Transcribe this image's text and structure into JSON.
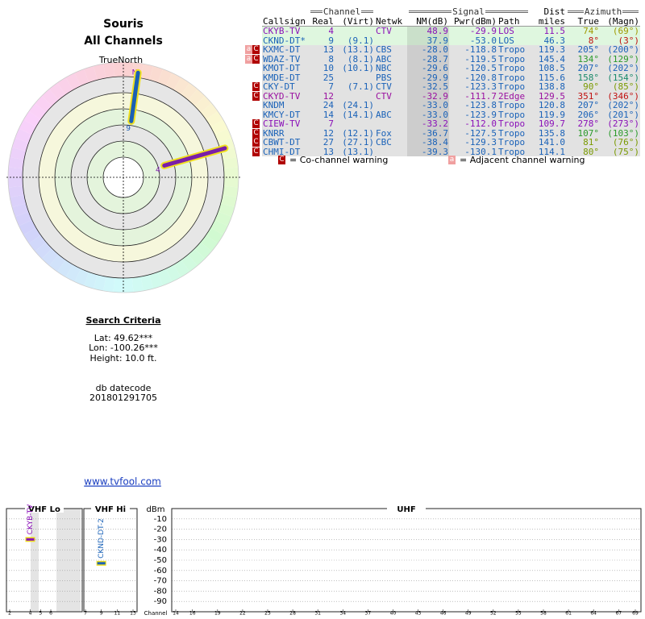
{
  "header": {
    "title": "Souris",
    "subtitle": "All Channels"
  },
  "polar": {
    "north_label": "TrueNorth",
    "n_label": "N",
    "beams": [
      {
        "label": "4",
        "azimuth": 74,
        "nm": 48.9,
        "color": "#7a1fa8"
      },
      {
        "label": "9",
        "azimuth": 8,
        "nm": 37.9,
        "color": "#1a5fb4"
      }
    ]
  },
  "table": {
    "groups": {
      "channel": "Channel",
      "signal": "Signal",
      "dist": "Dist",
      "azimuth": "Azimuth"
    },
    "columns": [
      "Callsign",
      "Real",
      "(Virt)",
      "Netwk",
      "NM(dB)",
      "Pwr(dBm)",
      "Path",
      "miles",
      "True",
      "(Magn)"
    ],
    "rows": [
      {
        "callsign": "CKYB-TV",
        "real": "4",
        "virt": "",
        "netwk": "CTV",
        "nm": "48.9",
        "pwr": "-29.9",
        "path": "LOS",
        "dist": "11.5",
        "true": "74°",
        "magn": "(69°)",
        "color": "#8a10b8",
        "az_color": "#a09a00",
        "bg": "#dff7df",
        "co": false,
        "adj": false
      },
      {
        "callsign": "CKND-DT*",
        "real": "9",
        "virt": "(9.1)",
        "netwk": "",
        "nm": "37.9",
        "pwr": "-53.0",
        "path": "LOS",
        "dist": "46.3",
        "true": "8°",
        "magn": "(3°)",
        "color": "#1a62b8",
        "az_color": "#c01010",
        "bg": "#dff7df",
        "co": false,
        "adj": false
      },
      {
        "callsign": "KXMC-DT",
        "real": "13",
        "virt": "(13.1)",
        "netwk": "CBS",
        "nm": "-28.0",
        "pwr": "-118.8",
        "path": "Tropo",
        "dist": "119.3",
        "true": "205°",
        "magn": "(200°)",
        "color": "#1a62b8",
        "az_color": "#1a62b8",
        "bg": "#e2e2e2",
        "co": true,
        "adj": true
      },
      {
        "callsign": "WDAZ-TV",
        "real": "8",
        "virt": "(8.1)",
        "netwk": "ABC",
        "nm": "-28.7",
        "pwr": "-119.5",
        "path": "Tropo",
        "dist": "145.4",
        "true": "134°",
        "magn": "(129°)",
        "color": "#1a62b8",
        "az_color": "#2a9a2a",
        "bg": "#e2e2e2",
        "co": true,
        "adj": true
      },
      {
        "callsign": "KMOT-DT",
        "real": "10",
        "virt": "(10.1)",
        "netwk": "NBC",
        "nm": "-29.6",
        "pwr": "-120.5",
        "path": "Tropo",
        "dist": "108.5",
        "true": "207°",
        "magn": "(202°)",
        "color": "#1a62b8",
        "az_color": "#1a62b8",
        "bg": "#e2e2e2",
        "co": false,
        "adj": false
      },
      {
        "callsign": "KMDE-DT",
        "real": "25",
        "virt": "",
        "netwk": "PBS",
        "nm": "-29.9",
        "pwr": "-120.8",
        "path": "Tropo",
        "dist": "115.6",
        "true": "158°",
        "magn": "(154°)",
        "color": "#1a62b8",
        "az_color": "#1a8a6a",
        "bg": "#e2e2e2",
        "co": false,
        "adj": false
      },
      {
        "callsign": "CKY-DT",
        "real": "7",
        "virt": "(7.1)",
        "netwk": "CTV",
        "nm": "-32.5",
        "pwr": "-123.3",
        "path": "Tropo",
        "dist": "138.8",
        "true": "90°",
        "magn": "(85°)",
        "color": "#1a62b8",
        "az_color": "#7a9a00",
        "bg": "#e2e2e2",
        "co": true,
        "adj": false
      },
      {
        "callsign": "CKYD-TV",
        "real": "12",
        "virt": "",
        "netwk": "CTV",
        "nm": "-32.9",
        "pwr": "-111.7",
        "path": "2Edge",
        "dist": "129.5",
        "true": "351°",
        "magn": "(346°)",
        "color": "#9a10a0",
        "az_color": "#c01010",
        "bg": "#e2e2e2",
        "co": true,
        "adj": false
      },
      {
        "callsign": "KNDM",
        "real": "24",
        "virt": "(24.1)",
        "netwk": "",
        "nm": "-33.0",
        "pwr": "-123.8",
        "path": "Tropo",
        "dist": "120.8",
        "true": "207°",
        "magn": "(202°)",
        "color": "#1a62b8",
        "az_color": "#1a62b8",
        "bg": "#e2e2e2",
        "co": false,
        "adj": false
      },
      {
        "callsign": "KMCY-DT",
        "real": "14",
        "virt": "(14.1)",
        "netwk": "ABC",
        "nm": "-33.0",
        "pwr": "-123.9",
        "path": "Tropo",
        "dist": "119.9",
        "true": "206°",
        "magn": "(201°)",
        "color": "#1a62b8",
        "az_color": "#1a62b8",
        "bg": "#e2e2e2",
        "co": false,
        "adj": false
      },
      {
        "callsign": "CIEW-TV",
        "real": "7",
        "virt": "",
        "netwk": "",
        "nm": "-33.2",
        "pwr": "-112.0",
        "path": "Tropo",
        "dist": "109.7",
        "true": "278°",
        "magn": "(273°)",
        "color": "#8a10b8",
        "az_color": "#8a10b8",
        "bg": "#e2e2e2",
        "co": true,
        "adj": false
      },
      {
        "callsign": "KNRR",
        "real": "12",
        "virt": "(12.1)",
        "netwk": "Fox",
        "nm": "-36.7",
        "pwr": "-127.5",
        "path": "Tropo",
        "dist": "135.8",
        "true": "107°",
        "magn": "(103°)",
        "color": "#1a62b8",
        "az_color": "#2a9a2a",
        "bg": "#e2e2e2",
        "co": true,
        "adj": false
      },
      {
        "callsign": "CBWT-DT",
        "real": "27",
        "virt": "(27.1)",
        "netwk": "CBC",
        "nm": "-38.4",
        "pwr": "-129.3",
        "path": "Tropo",
        "dist": "141.0",
        "true": "81°",
        "magn": "(76°)",
        "color": "#1a62b8",
        "az_color": "#7a9a00",
        "bg": "#e2e2e2",
        "co": true,
        "adj": false
      },
      {
        "callsign": "CHMI-DT",
        "real": "13",
        "virt": "(13.1)",
        "netwk": "",
        "nm": "-39.3",
        "pwr": "-130.1",
        "path": "Tropo",
        "dist": "114.1",
        "true": "80°",
        "magn": "(75°)",
        "color": "#1a62b8",
        "az_color": "#7a9a00",
        "bg": "#e2e2e2",
        "co": true,
        "adj": false
      }
    ]
  },
  "legend": {
    "co_icon": "C",
    "co_text": "= Co-channel warning",
    "adj_icon": "a",
    "adj_text": "= Adjacent channel warning"
  },
  "search": {
    "title": "Search Criteria",
    "lat": "Lat: 49.62***",
    "lon": "Lon: -100.26***",
    "height": "Height: 10.0 ft.",
    "db_label": "db datecode",
    "db_value": "201801291705"
  },
  "link": "www.tvfool.com",
  "spectrum": {
    "ylabel": "dBm",
    "xlabel": "Channel",
    "ylim": [
      0,
      -100
    ],
    "yticks": [
      -10,
      -20,
      -30,
      -40,
      -50,
      -60,
      -70,
      -80,
      -90
    ],
    "sections": [
      {
        "label": "VHF Lo",
        "xlim": [
          2,
          6
        ],
        "xticks": [
          2,
          4,
          5,
          6
        ],
        "signals": [
          {
            "label": "CKYB-TV",
            "channel": 4,
            "dbm": -29.9,
            "color": "#8a10b8"
          }
        ]
      },
      {
        "label": "VHF Hi",
        "xlim": [
          7,
          13
        ],
        "xticks": [
          7,
          9,
          11,
          13
        ],
        "signals": [
          {
            "label": "CKND-DT-2",
            "channel": 9,
            "dbm": -53.0,
            "color": "#1a62b8"
          }
        ]
      },
      {
        "label": "UHF",
        "xlim": [
          14,
          69
        ],
        "xticks": [
          14,
          16,
          19,
          22,
          25,
          28,
          31,
          34,
          37,
          40,
          43,
          46,
          49,
          52,
          55,
          58,
          61,
          64,
          67,
          69
        ],
        "signals": []
      }
    ]
  }
}
